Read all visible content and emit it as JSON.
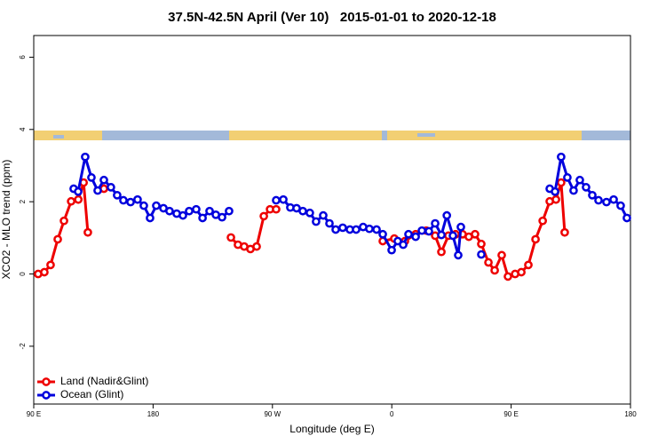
{
  "chart_data": {
    "type": "line",
    "title": "37.5N-42.5N April (Ver 10)   2015-01-01 to 2020-12-18",
    "xlabel": "Longitude (deg E)",
    "ylabel": "XCO2 - MLO trend (ppm)",
    "xlim": [
      90,
      540
    ],
    "ylim": [
      -3.6,
      6.6
    ],
    "xticks": [
      {
        "value": 90,
        "label": "90 E"
      },
      180,
      {
        "value": 270,
        "label": "90 W"
      },
      {
        "value": 360,
        "label": "0"
      },
      {
        "value": 450,
        "label": "90 E"
      },
      {
        "value": 540,
        "label": "180"
      }
    ],
    "yticks": [
      -2,
      0,
      2,
      4,
      6
    ],
    "legend": "bottomleft",
    "series": [
      {
        "name": "Land (Nadir&Glint)",
        "color": "#ee0000",
        "x": [
          93.3,
          98.0,
          102.7,
          108.1,
          112.8,
          118.2,
          123.6,
          127.6,
          130.8,
          null,
          142.9,
          null,
          238.7,
          244.0,
          248.7,
          253.4,
          258.1,
          263.5,
          268.2,
          272.8,
          null,
          353.2,
          361.9,
          369.9,
          378.0,
          386.0,
          392.7,
          397.4,
          402.7,
          408.1,
          413.4,
          418.1,
          422.8,
          427.5,
          432.9,
          437.6,
          442.9,
          447.6,
          453.0,
          457.7,
          463.0,
          468.4,
          473.8,
          479.1,
          483.8,
          487.7,
          490.4
        ],
        "values": [
          0,
          0.05,
          0.25,
          0.96,
          1.47,
          2.01,
          2.06,
          2.53,
          1.15,
          null,
          2.36,
          null,
          1.01,
          0.81,
          0.76,
          0.69,
          0.76,
          1.6,
          1.79,
          1.79,
          null,
          0.91,
          0.98,
          0.91,
          1.1,
          1.2,
          1.06,
          0.61,
          1.06,
          1.1,
          1.1,
          1.03,
          1.1,
          0.83,
          0.32,
          0.1,
          0.52,
          -0.07,
          0,
          0.05,
          0.25,
          0.96,
          1.47,
          2.01,
          2.06,
          2.53,
          1.15
        ]
      },
      {
        "name": "Ocean (Glint)",
        "color": "#0000dd",
        "x": [
          120.1,
          123.5,
          128.8,
          133.5,
          138.2,
          142.9,
          148.2,
          152.9,
          157.6,
          163.0,
          168.3,
          173.0,
          177.7,
          182.4,
          187.8,
          192.4,
          197.8,
          202.5,
          207.2,
          212.5,
          217.3,
          222.6,
          227.3,
          232.0,
          237.3,
          null,
          272.8,
          278.2,
          283.5,
          288.2,
          292.9,
          298.2,
          302.9,
          308.3,
          313.0,
          317.7,
          323.0,
          328.4,
          333.1,
          338.4,
          343.1,
          348.5,
          353.2,
          359.9,
          364.5,
          368.6,
          372.6,
          378.0,
          382.7,
          388.0,
          392.7,
          397.4,
          401.5,
          406.1,
          410.1,
          412.1,
          null,
          427.5,
          null,
          479.1,
          483.1,
          487.7,
          492.4,
          497.1,
          501.8,
          506.5,
          511.2,
          515.9,
          521.9,
          527.3,
          532.6,
          537.3
        ],
        "values": [
          2.36,
          2.28,
          3.24,
          2.67,
          2.31,
          2.6,
          2.4,
          2.18,
          2.04,
          1.99,
          2.06,
          1.89,
          1.55,
          1.89,
          1.82,
          1.74,
          1.67,
          1.62,
          1.74,
          1.79,
          1.55,
          1.74,
          1.64,
          1.57,
          1.74,
          null,
          2.04,
          2.06,
          1.84,
          1.82,
          1.74,
          1.69,
          1.45,
          1.62,
          1.4,
          1.23,
          1.28,
          1.23,
          1.23,
          1.3,
          1.25,
          1.23,
          1.1,
          0.66,
          0.91,
          0.81,
          1.1,
          1.03,
          1.2,
          1.18,
          1.4,
          1.08,
          1.62,
          1.06,
          0.52,
          1.3,
          null,
          0.54,
          null,
          2.36,
          2.28,
          3.24,
          2.67,
          2.31,
          2.6,
          2.4,
          2.18,
          2.04,
          1.99,
          2.06,
          1.89,
          1.55
        ]
      }
    ]
  }
}
